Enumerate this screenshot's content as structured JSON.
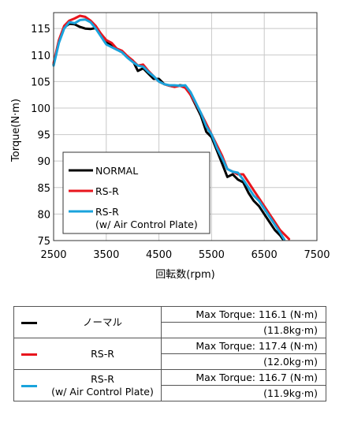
{
  "chart_data": {
    "type": "line",
    "title": "",
    "xlabel": "回転数(rpm)",
    "ylabel": "Torque(N·m)",
    "xlim": [
      2500,
      7500
    ],
    "ylim": [
      75,
      118
    ],
    "xticks": [
      2500,
      3500,
      4500,
      5500,
      6500,
      7500
    ],
    "yticks": [
      75,
      80,
      85,
      90,
      95,
      100,
      105,
      110,
      115
    ],
    "grid": true,
    "legend_position": "bottom-left",
    "series": [
      {
        "name": "NORMAL",
        "color": "#000000",
        "x": [
          2500,
          2600,
          2700,
          2800,
          2900,
          3000,
          3100,
          3200,
          3300,
          3400,
          3500,
          3600,
          3700,
          3800,
          3900,
          4000,
          4100,
          4200,
          4300,
          4400,
          4500,
          4600,
          4700,
          4800,
          4900,
          5000,
          5100,
          5200,
          5300,
          5400,
          5500,
          5600,
          5700,
          5800,
          5900,
          6000,
          6100,
          6200,
          6300,
          6400,
          6500,
          6600,
          6700,
          6800,
          6850
        ],
        "y": [
          108.2,
          112.5,
          115.2,
          115.9,
          115.8,
          115.3,
          115.0,
          114.9,
          115.1,
          114.0,
          112.5,
          111.8,
          111.0,
          110.7,
          109.6,
          109.0,
          107.0,
          107.5,
          106.5,
          105.5,
          105.5,
          104.5,
          104.2,
          104.0,
          104.3,
          104.2,
          102.5,
          100.5,
          98.5,
          95.5,
          94.5,
          92.0,
          89.5,
          87.0,
          87.5,
          86.5,
          86.0,
          84.0,
          82.5,
          81.5,
          80.0,
          78.5,
          77.0,
          76.0,
          75.3
        ]
      },
      {
        "name": "RS-R",
        "color": "#e8151d",
        "x": [
          2500,
          2600,
          2700,
          2800,
          2900,
          3000,
          3100,
          3200,
          3300,
          3400,
          3500,
          3600,
          3700,
          3800,
          3900,
          4000,
          4100,
          4200,
          4300,
          4400,
          4500,
          4600,
          4700,
          4800,
          4900,
          5000,
          5100,
          5200,
          5300,
          5400,
          5500,
          5600,
          5700,
          5800,
          5900,
          6000,
          6100,
          6200,
          6300,
          6400,
          6500,
          6600,
          6700,
          6800,
          6900,
          6970
        ],
        "y": [
          108.5,
          112.8,
          115.5,
          116.5,
          116.9,
          117.4,
          117.2,
          116.5,
          115.5,
          114.0,
          112.8,
          112.3,
          111.2,
          110.8,
          109.8,
          109.0,
          108.0,
          108.2,
          107.0,
          106.0,
          105.0,
          104.5,
          104.2,
          104.0,
          104.2,
          103.8,
          102.5,
          100.8,
          99.0,
          97.0,
          95.0,
          93.0,
          91.0,
          88.5,
          88.0,
          87.5,
          87.5,
          86.0,
          84.5,
          83.0,
          81.5,
          80.0,
          78.5,
          77.0,
          76.0,
          75.3
        ]
      },
      {
        "name": "RS-R\n(w/ Air Control Plate)",
        "color": "#1aa3dc",
        "x": [
          2500,
          2600,
          2700,
          2800,
          2900,
          3000,
          3100,
          3200,
          3300,
          3400,
          3500,
          3600,
          3700,
          3800,
          3900,
          4000,
          4100,
          4200,
          4300,
          4400,
          4500,
          4600,
          4700,
          4800,
          4900,
          5000,
          5100,
          5200,
          5300,
          5400,
          5500,
          5600,
          5700,
          5800,
          5900,
          6000,
          6100,
          6200,
          6300,
          6400,
          6500,
          6600,
          6700,
          6800,
          6880
        ],
        "y": [
          108.0,
          112.3,
          115.0,
          116.2,
          116.0,
          116.6,
          116.7,
          116.2,
          115.0,
          113.5,
          112.0,
          111.5,
          111.0,
          110.5,
          109.5,
          108.7,
          108.0,
          107.8,
          106.8,
          106.0,
          105.0,
          104.5,
          104.3,
          104.3,
          104.2,
          104.3,
          103.0,
          101.0,
          99.0,
          96.5,
          95.0,
          92.5,
          90.5,
          88.5,
          88.0,
          87.8,
          86.5,
          85.0,
          83.5,
          82.5,
          81.0,
          79.5,
          78.0,
          76.5,
          75.2
        ]
      }
    ]
  },
  "table": {
    "rows": [
      {
        "color": "#000000",
        "name": "ノーマル",
        "max_torque": "Max Torque: 116.1 (N·m)",
        "kgm": "(11.8kg·m)"
      },
      {
        "color": "#e8151d",
        "name": "RS-R",
        "max_torque": "Max Torque: 117.4 (N·m)",
        "kgm": "(12.0kg·m)"
      },
      {
        "color": "#1aa3dc",
        "name": "RS-R\n(w/ Air Control Plate)",
        "max_torque": "Max Torque: 116.7 (N·m)",
        "kgm": "(11.9kg·m)"
      }
    ]
  }
}
